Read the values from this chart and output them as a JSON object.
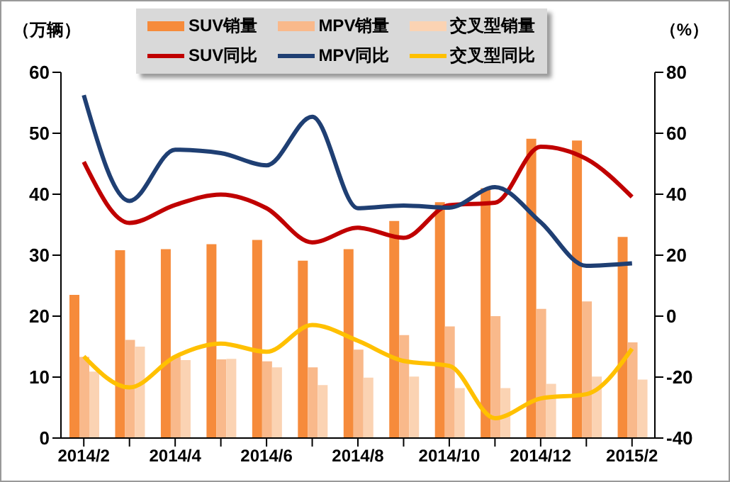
{
  "chart_data": {
    "type": "bar",
    "ylabel": "（万辆）",
    "y2label": "（%）",
    "categories": [
      "2014/2",
      null,
      "2014/4",
      null,
      "2014/6",
      null,
      "2014/8",
      null,
      "2014/10",
      null,
      "2014/12",
      null,
      "2015/2"
    ],
    "series": [
      {
        "name": "SUV销量",
        "color": "#f68b3b",
        "values": [
          23.5,
          30.8,
          31.0,
          31.8,
          32.5,
          29.1,
          31.0,
          35.6,
          38.7,
          41.0,
          49.1,
          48.8,
          33.0
        ]
      },
      {
        "name": "MPV销量",
        "color": "#f9b98b",
        "values": [
          13.3,
          16.1,
          13.3,
          12.9,
          12.6,
          11.6,
          14.5,
          16.9,
          18.3,
          20.0,
          21.2,
          22.4,
          15.7
        ]
      },
      {
        "name": "交叉型销量",
        "color": "#fbd3b3",
        "values": [
          10.9,
          15.0,
          12.8,
          13.0,
          11.6,
          8.7,
          9.9,
          10.1,
          8.2,
          8.2,
          8.9,
          10.1,
          9.6
        ]
      },
      {
        "name": "SUV同比",
        "type": "line",
        "axis": "y2",
        "color": "#c00000",
        "values": [
          50.6,
          30.6,
          36.5,
          39.9,
          35.4,
          24.2,
          29.0,
          25.7,
          36.4,
          37.2,
          55.6,
          51.6,
          39.1
        ]
      },
      {
        "name": "MPV同比",
        "type": "line",
        "axis": "y2",
        "color": "#1f3f73",
        "values": [
          72.5,
          37.8,
          54.6,
          53.5,
          49.5,
          65.4,
          35.4,
          36.3,
          35.6,
          42.3,
          30.8,
          16.5,
          17.3
        ]
      },
      {
        "name": "交叉型同比",
        "type": "line",
        "axis": "y2",
        "color": "#ffc000",
        "values": [
          -13.2,
          -23.4,
          -13.3,
          -9.0,
          -11.7,
          -2.9,
          -8.1,
          -14.7,
          -16.3,
          -33.5,
          -27.0,
          -25.6,
          -10.7
        ]
      }
    ],
    "ylim": [
      0,
      60
    ],
    "yticks": [
      0,
      10,
      20,
      30,
      40,
      50,
      60
    ],
    "y2lim": [
      -40,
      80
    ],
    "y2ticks": [
      -40,
      -20,
      0,
      20,
      40,
      60,
      80
    ],
    "legend": "top",
    "grid": false,
    "marker": "none",
    "line_style": "solid"
  }
}
